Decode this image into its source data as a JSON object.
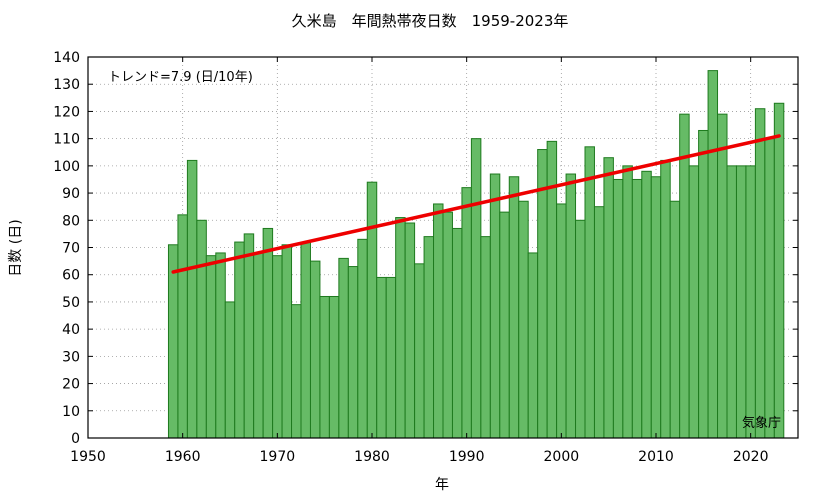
{
  "chart_data": {
    "type": "bar",
    "title": "久米島　年間熱帯夜日数　1959-2023年",
    "xlabel": "年",
    "ylabel": "日数 (日)",
    "trend_text": "トレンド=7.9 (日/10年)",
    "credit": "気象庁",
    "xlim": [
      1950,
      2025
    ],
    "ylim": [
      0,
      140
    ],
    "x_ticks": [
      1950,
      1960,
      1970,
      1980,
      1990,
      2000,
      2010,
      2020
    ],
    "y_ticks": [
      0,
      10,
      20,
      30,
      40,
      50,
      60,
      70,
      80,
      90,
      100,
      110,
      120,
      130,
      140
    ],
    "grid": true,
    "bar_color": "#66bb66",
    "bar_edge_color": "#1e7a1e",
    "trend_color": "#ee0000",
    "x": [
      1959,
      1960,
      1961,
      1962,
      1963,
      1964,
      1965,
      1966,
      1967,
      1968,
      1969,
      1970,
      1971,
      1972,
      1973,
      1974,
      1975,
      1976,
      1977,
      1978,
      1979,
      1980,
      1981,
      1982,
      1983,
      1984,
      1985,
      1986,
      1987,
      1988,
      1989,
      1990,
      1991,
      1992,
      1993,
      1994,
      1995,
      1996,
      1997,
      1998,
      1999,
      2000,
      2001,
      2002,
      2003,
      2004,
      2005,
      2006,
      2007,
      2008,
      2009,
      2010,
      2011,
      2012,
      2013,
      2014,
      2015,
      2016,
      2017,
      2018,
      2019,
      2020,
      2021,
      2022,
      2023
    ],
    "values": [
      71,
      82,
      102,
      80,
      67,
      68,
      50,
      72,
      75,
      68,
      77,
      67,
      71,
      49,
      72,
      65,
      52,
      52,
      66,
      63,
      73,
      94,
      59,
      59,
      81,
      79,
      64,
      74,
      86,
      83,
      77,
      92,
      110,
      74,
      97,
      83,
      96,
      87,
      68,
      106,
      109,
      86,
      97,
      80,
      107,
      85,
      103,
      95,
      100,
      95,
      98,
      96,
      102,
      87,
      119,
      100,
      113,
      135,
      119,
      100,
      100,
      100,
      121,
      110,
      123
    ],
    "trend": {
      "x": [
        1959,
        2023
      ],
      "y": [
        61,
        111
      ]
    }
  }
}
